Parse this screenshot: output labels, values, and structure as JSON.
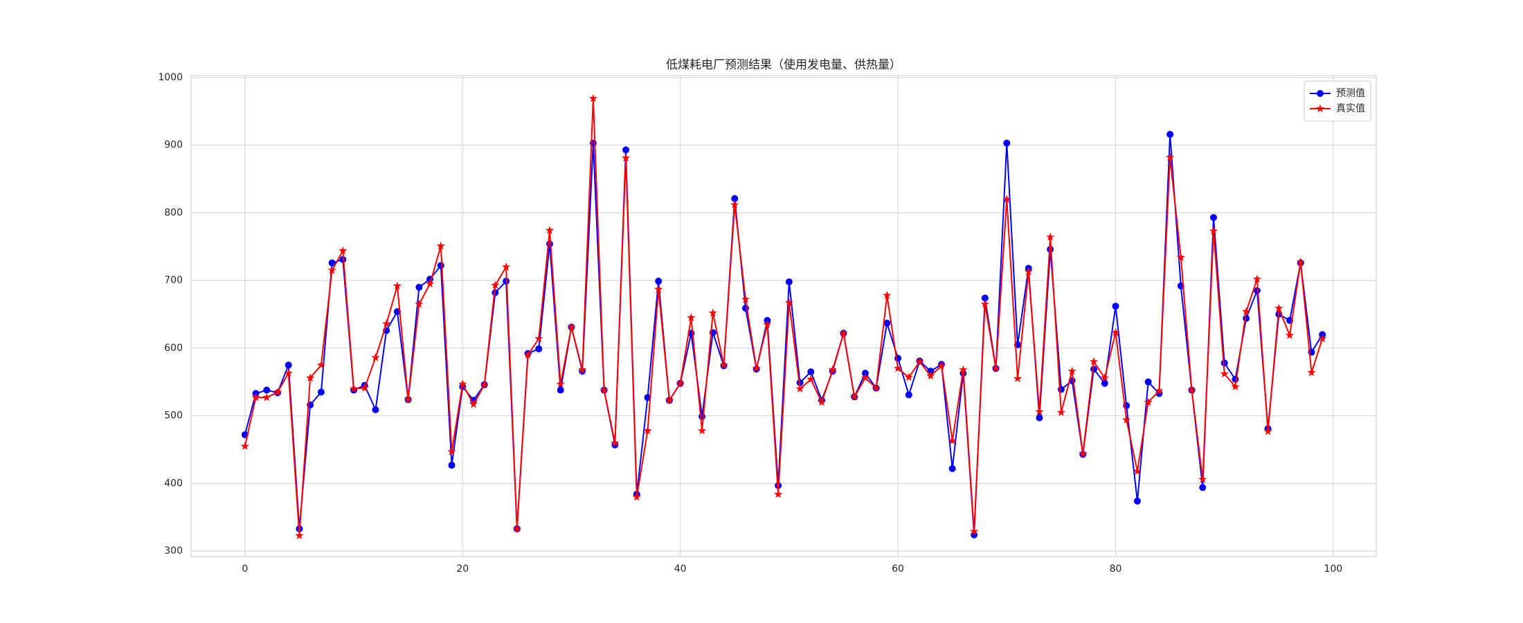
{
  "chart_data": {
    "type": "line",
    "title": "低煤耗电厂预测结果（使用发电量、供热量）",
    "x": [
      0,
      1,
      2,
      3,
      4,
      5,
      6,
      7,
      8,
      9,
      10,
      11,
      12,
      13,
      14,
      15,
      16,
      17,
      18,
      19,
      20,
      21,
      22,
      23,
      24,
      25,
      26,
      27,
      28,
      29,
      30,
      31,
      32,
      33,
      34,
      35,
      36,
      37,
      38,
      39,
      40,
      41,
      42,
      43,
      44,
      45,
      46,
      47,
      48,
      49,
      50,
      51,
      52,
      53,
      54,
      55,
      56,
      57,
      58,
      59,
      60,
      61,
      62,
      63,
      64,
      65,
      66,
      67,
      68,
      69,
      70,
      71,
      72,
      73,
      74,
      75,
      76,
      77,
      78,
      79,
      80,
      81,
      82,
      83,
      84,
      85,
      86,
      87,
      88,
      89,
      90,
      91,
      92,
      93,
      94,
      95,
      96,
      97,
      98,
      99
    ],
    "series": [
      {
        "name": "预测值",
        "color": "#0000ff",
        "marker": "circle",
        "values": [
          472,
          533,
          538,
          534,
          575,
          333,
          516,
          535,
          726,
          731,
          538,
          545,
          509,
          626,
          654,
          524,
          690,
          702,
          722,
          427,
          543,
          523,
          546,
          682,
          699,
          333,
          592,
          599,
          754,
          538,
          631,
          566,
          903,
          538,
          457,
          893,
          384,
          527,
          699,
          523,
          548,
          622,
          499,
          623,
          574,
          821,
          659,
          569,
          641,
          397,
          698,
          549,
          565,
          523,
          566,
          622,
          528,
          563,
          541,
          637,
          585,
          531,
          581,
          566,
          576,
          422,
          563,
          324,
          674,
          570,
          903,
          605,
          718,
          497,
          746,
          539,
          552,
          443,
          569,
          548,
          662,
          515,
          374,
          550,
          533,
          916,
          692,
          538,
          394,
          793,
          578,
          554,
          644,
          685,
          481,
          650,
          641,
          726,
          594,
          620
        ]
      },
      {
        "name": "真实值",
        "color": "#ff0000",
        "marker": "star",
        "values": [
          455,
          527,
          527,
          535,
          563,
          323,
          556,
          575,
          715,
          744,
          540,
          541,
          586,
          636,
          692,
          524,
          665,
          695,
          751,
          447,
          547,
          517,
          546,
          693,
          720,
          333,
          590,
          614,
          774,
          547,
          631,
          568,
          969,
          538,
          460,
          881,
          380,
          478,
          687,
          523,
          548,
          645,
          478,
          652,
          575,
          812,
          672,
          570,
          635,
          384,
          667,
          540,
          554,
          520,
          568,
          622,
          528,
          556,
          541,
          678,
          570,
          557,
          580,
          559,
          574,
          463,
          568,
          329,
          665,
          570,
          820,
          555,
          713,
          506,
          764,
          505,
          566,
          444,
          580,
          556,
          623,
          494,
          418,
          520,
          537,
          882,
          734,
          538,
          406,
          773,
          562,
          543,
          654,
          702,
          477,
          659,
          619,
          727,
          564,
          614
        ]
      }
    ],
    "xlim": [
      -4.95,
      103.95
    ],
    "xticks": [
      0,
      20,
      40,
      60,
      80,
      100
    ],
    "ylim": [
      292,
      1003
    ],
    "yticks": [
      300,
      400,
      500,
      600,
      700,
      800,
      900,
      1000
    ],
    "grid": true,
    "legend": "upper right"
  }
}
